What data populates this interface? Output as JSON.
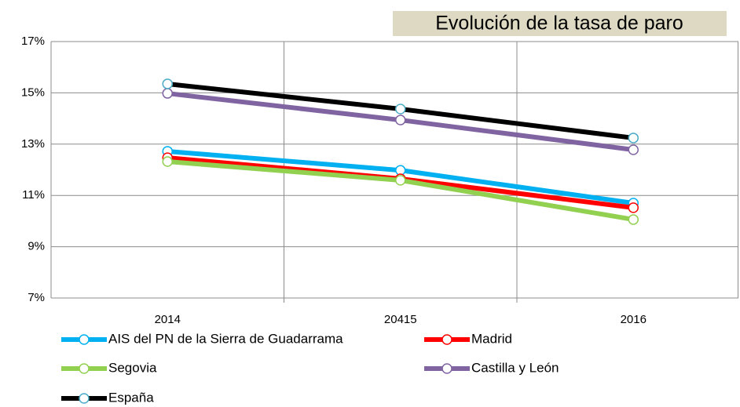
{
  "chart_data": {
    "type": "line",
    "title": "Evolución de la tasa  de paro",
    "categories": [
      "2014",
      "20415",
      "2016"
    ],
    "series": [
      {
        "name": "AIS del PN de la Sierra de Guadarrama",
        "color": "#00b0f0",
        "values": [
          12.72,
          11.98,
          10.7
        ]
      },
      {
        "name": "Madrid",
        "color": "#ff0000",
        "values": [
          12.47,
          11.65,
          10.52
        ]
      },
      {
        "name": "Segovia",
        "color": "#92d050",
        "values": [
          12.32,
          11.59,
          10.06
        ]
      },
      {
        "name": "Castilla y León",
        "color": "#8064a2",
        "values": [
          14.98,
          13.94,
          12.78
        ]
      },
      {
        "name": "España",
        "color": "#000000",
        "values": [
          15.35,
          14.37,
          13.24
        ]
      }
    ],
    "ylim": [
      7,
      17
    ],
    "yticks": [
      {
        "value": 7,
        "label": "7%"
      },
      {
        "value": 9,
        "label": "9%"
      },
      {
        "value": 11,
        "label": "11%"
      },
      {
        "value": 13,
        "label": "13%"
      },
      {
        "value": 15,
        "label": "15%"
      },
      {
        "value": 17,
        "label": "17%"
      }
    ],
    "grid": true
  }
}
